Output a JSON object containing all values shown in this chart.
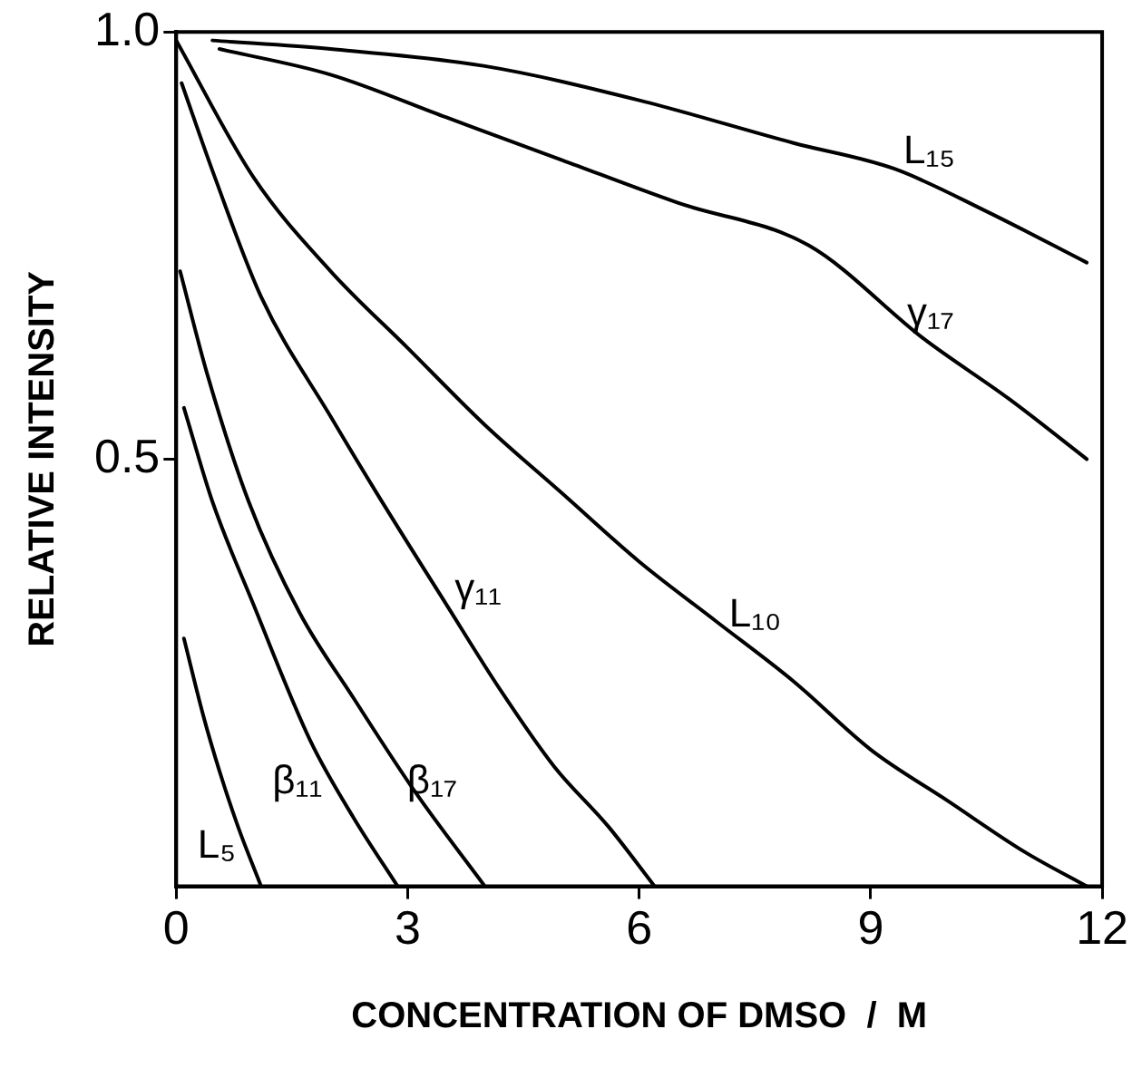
{
  "chart_data": {
    "type": "line",
    "xlabel": "CONCENTRATION OF DMSO  /  M",
    "ylabel": "RELATIVE INTENSITY",
    "xlim": [
      0,
      12
    ],
    "ylim": [
      0,
      1
    ],
    "xticks": [
      0,
      3,
      6,
      9,
      12
    ],
    "yticks": [
      0.5,
      {
        "value": 1,
        "label": "1.0"
      }
    ],
    "grid": false,
    "legend": false,
    "marker": "none",
    "line_style": "solid",
    "series": [
      {
        "name": "L₁₅",
        "color": "#000000",
        "x": [
          0.47,
          2,
          4,
          6,
          8,
          9.3,
          10.5,
          11.8
        ],
        "values": [
          0.99,
          0.98,
          0.96,
          0.92,
          0.87,
          0.84,
          0.79,
          0.73
        ]
      },
      {
        "name": "γ₁₇",
        "color": "#000000",
        "x": [
          0.56,
          2,
          3.5,
          5,
          6.5,
          8.2,
          9.7,
          10.8,
          11.8
        ],
        "values": [
          0.98,
          0.95,
          0.9,
          0.85,
          0.8,
          0.75,
          0.64,
          0.57,
          0.5
        ]
      },
      {
        "name": "L₁₀",
        "color": "#000000",
        "x": [
          0,
          1,
          2,
          3,
          4,
          5,
          6,
          7,
          8,
          9,
          10,
          11,
          11.8
        ],
        "values": [
          0.99,
          0.83,
          0.72,
          0.63,
          0.54,
          0.46,
          0.38,
          0.31,
          0.24,
          0.16,
          0.1,
          0.04,
          0
        ]
      },
      {
        "name": "γ₁₁",
        "color": "#000000",
        "x": [
          0.07,
          0.5,
          1.1,
          2,
          2.6,
          3.5,
          4.2,
          4.9,
          5.6,
          6.2
        ],
        "values": [
          0.94,
          0.83,
          0.69,
          0.55,
          0.46,
          0.33,
          0.23,
          0.14,
          0.07,
          0
        ]
      },
      {
        "name": "β₁₇",
        "color": "#000000",
        "x": [
          0.05,
          0.4,
          0.94,
          1.6,
          2.3,
          3.1,
          4
        ],
        "values": [
          0.72,
          0.6,
          0.45,
          0.32,
          0.22,
          0.11,
          0
        ]
      },
      {
        "name": "β₁₁",
        "color": "#000000",
        "x": [
          0.1,
          0.47,
          1,
          1.74,
          2.3,
          2.87
        ],
        "values": [
          0.56,
          0.45,
          0.33,
          0.17,
          0.08,
          0
        ]
      },
      {
        "name": "L₅",
        "color": "#000000",
        "x": [
          0.1,
          0.35,
          0.56,
          0.8,
          1.1
        ],
        "values": [
          0.29,
          0.2,
          0.135,
          0.07,
          0
        ]
      }
    ]
  }
}
